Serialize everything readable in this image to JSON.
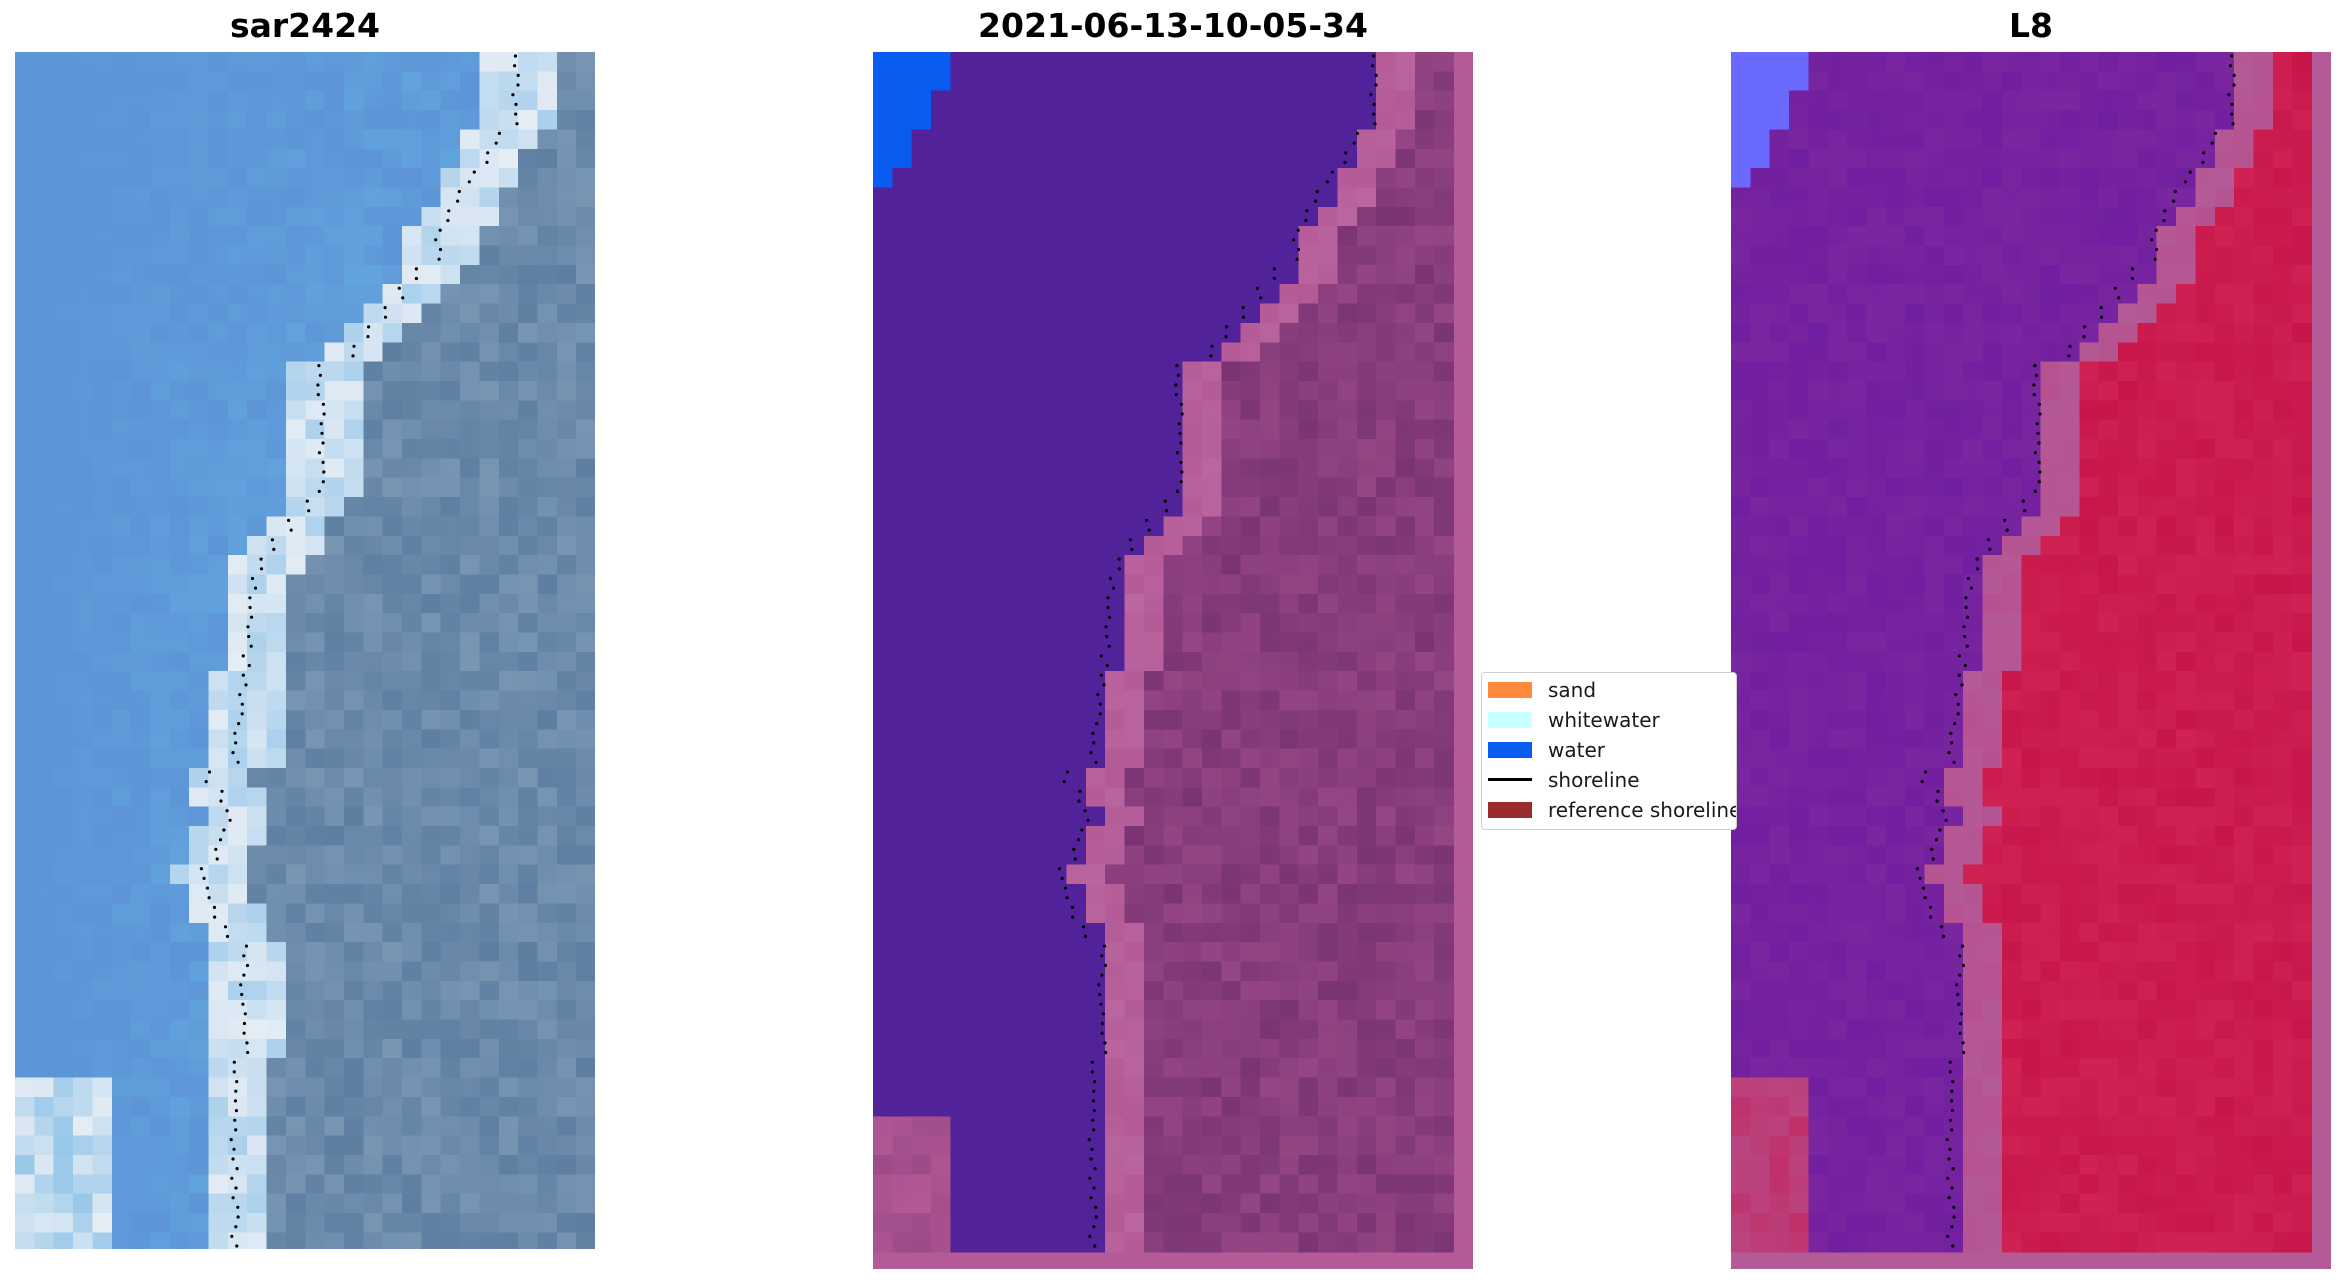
{
  "panels": [
    {
      "title": "sar2424",
      "description_key": "rgb"
    },
    {
      "title": "2021-06-13-10-05-34",
      "description_key": "classified"
    },
    {
      "title": "L8",
      "description_key": "mndwi"
    }
  ],
  "legend": {
    "items": [
      {
        "label": "sand",
        "color": "#ff8a3c",
        "kind": "patch"
      },
      {
        "label": "whitewater",
        "color": "#c8ffff",
        "kind": "patch"
      },
      {
        "label": "water",
        "color": "#0a5cf0",
        "kind": "patch"
      },
      {
        "label": "shoreline",
        "color": "#000000",
        "kind": "line"
      },
      {
        "label": "reference shoreline",
        "color": "#9a2c2c",
        "kind": "patch"
      }
    ]
  },
  "colors": {
    "classified_water": "#52229a",
    "classified_water_bright": "#0a5cf0",
    "land_pink": "#b45a96",
    "land_dark": "#7a3474",
    "mndwi_purple": "#7a26a0",
    "mndwi_red": "#c8164a",
    "mndwi_blue": "#6a6aff",
    "rgb_ocean": "#5a8ad2",
    "rgb_ocean_light": "#64aee2",
    "rgb_land": "#5e7fa2",
    "rgb_foam": "#e4ecf4"
  }
}
